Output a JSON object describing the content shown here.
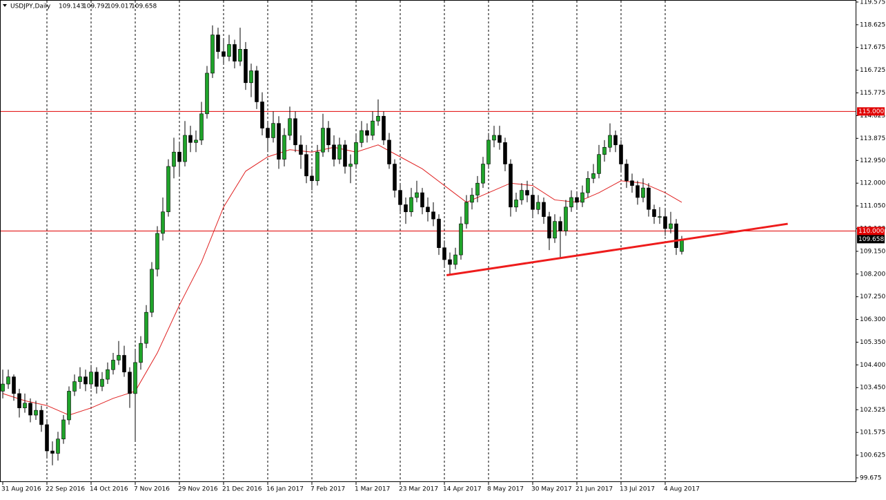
{
  "chart_data": {
    "type": "candlestick",
    "symbol": "USDJPY,Daily",
    "ohlc": [
      [
        103.3,
        104.2,
        103.0,
        103.6
      ],
      [
        103.6,
        104.2,
        103.4,
        103.9
      ],
      [
        103.9,
        104.0,
        102.9,
        103.2
      ],
      [
        103.2,
        103.4,
        102.2,
        102.6
      ],
      [
        102.6,
        103.2,
        102.4,
        102.8
      ],
      [
        102.8,
        103.0,
        102.0,
        102.3
      ],
      [
        102.3,
        102.9,
        102.1,
        102.5
      ],
      [
        102.5,
        102.7,
        101.6,
        101.9
      ],
      [
        101.9,
        102.1,
        100.5,
        100.8
      ],
      [
        100.8,
        101.2,
        100.2,
        100.7
      ],
      [
        100.7,
        101.6,
        100.4,
        101.3
      ],
      [
        101.3,
        102.3,
        101.1,
        102.1
      ],
      [
        102.1,
        103.5,
        101.9,
        103.3
      ],
      [
        103.3,
        104.0,
        103.1,
        103.7
      ],
      [
        103.7,
        104.3,
        103.4,
        103.9
      ],
      [
        103.9,
        104.2,
        103.3,
        103.6
      ],
      [
        103.6,
        104.4,
        103.4,
        104.1
      ],
      [
        104.1,
        104.3,
        103.2,
        103.5
      ],
      [
        103.5,
        104.1,
        103.3,
        103.8
      ],
      [
        103.8,
        104.5,
        103.6,
        104.2
      ],
      [
        104.2,
        104.9,
        104.0,
        104.6
      ],
      [
        104.6,
        105.4,
        104.4,
        104.8
      ],
      [
        104.8,
        105.2,
        103.9,
        104.1
      ],
      [
        104.1,
        104.3,
        102.6,
        103.2
      ],
      [
        103.2,
        105.0,
        101.2,
        104.5
      ],
      [
        104.5,
        105.6,
        104.2,
        105.3
      ],
      [
        105.3,
        106.9,
        105.1,
        106.6
      ],
      [
        106.6,
        108.7,
        106.4,
        108.4
      ],
      [
        108.4,
        110.2,
        108.1,
        109.9
      ],
      [
        109.9,
        111.4,
        109.6,
        110.8
      ],
      [
        110.8,
        113.0,
        110.6,
        112.7
      ],
      [
        112.7,
        113.9,
        112.2,
        113.3
      ],
      [
        113.3,
        113.7,
        112.3,
        112.9
      ],
      [
        112.9,
        114.6,
        112.7,
        114.0
      ],
      [
        114.0,
        114.4,
        113.3,
        113.7
      ],
      [
        113.7,
        114.2,
        113.3,
        113.8
      ],
      [
        113.8,
        115.4,
        113.6,
        114.9
      ],
      [
        114.9,
        116.9,
        114.7,
        116.6
      ],
      [
        116.6,
        118.6,
        116.4,
        118.2
      ],
      [
        118.2,
        118.5,
        117.2,
        117.5
      ],
      [
        117.5,
        118.0,
        117.0,
        117.3
      ],
      [
        117.3,
        118.2,
        117.1,
        117.8
      ],
      [
        117.8,
        118.0,
        116.8,
        117.1
      ],
      [
        117.1,
        118.5,
        116.9,
        117.6
      ],
      [
        117.6,
        117.9,
        115.9,
        116.2
      ],
      [
        116.2,
        117.0,
        115.6,
        116.7
      ],
      [
        116.7,
        116.9,
        115.1,
        115.4
      ],
      [
        115.4,
        115.8,
        114.0,
        114.3
      ],
      [
        114.3,
        114.6,
        113.3,
        113.9
      ],
      [
        113.9,
        115.0,
        113.7,
        114.5
      ],
      [
        114.5,
        114.8,
        112.6,
        113.0
      ],
      [
        113.0,
        114.3,
        112.7,
        114.0
      ],
      [
        114.0,
        115.2,
        113.8,
        114.7
      ],
      [
        114.7,
        115.0,
        113.3,
        113.6
      ],
      [
        113.6,
        114.0,
        112.6,
        113.2
      ],
      [
        113.2,
        113.6,
        112.0,
        112.3
      ],
      [
        112.3,
        112.6,
        111.7,
        112.1
      ],
      [
        112.1,
        113.6,
        111.9,
        113.3
      ],
      [
        113.3,
        114.9,
        113.1,
        114.3
      ],
      [
        114.3,
        114.6,
        113.3,
        113.6
      ],
      [
        113.6,
        114.0,
        112.7,
        113.0
      ],
      [
        113.0,
        113.9,
        112.8,
        113.6
      ],
      [
        113.6,
        113.8,
        112.4,
        112.7
      ],
      [
        112.7,
        113.2,
        112.0,
        112.8
      ],
      [
        112.8,
        114.0,
        112.6,
        113.7
      ],
      [
        113.7,
        114.6,
        113.5,
        114.2
      ],
      [
        114.2,
        114.5,
        113.7,
        114.0
      ],
      [
        114.0,
        115.0,
        113.8,
        114.6
      ],
      [
        114.6,
        115.5,
        114.4,
        114.8
      ],
      [
        114.8,
        115.0,
        113.6,
        113.8
      ],
      [
        113.8,
        114.1,
        112.6,
        112.8
      ],
      [
        112.8,
        113.0,
        111.4,
        111.7
      ],
      [
        111.7,
        112.0,
        110.8,
        111.1
      ],
      [
        111.1,
        111.4,
        110.3,
        110.8
      ],
      [
        110.8,
        111.8,
        110.6,
        111.4
      ],
      [
        111.4,
        112.1,
        111.2,
        111.6
      ],
      [
        111.6,
        111.8,
        110.7,
        111.0
      ],
      [
        111.0,
        111.4,
        110.4,
        110.8
      ],
      [
        110.8,
        111.2,
        110.2,
        110.5
      ],
      [
        110.5,
        110.7,
        109.0,
        109.3
      ],
      [
        109.3,
        109.6,
        108.5,
        108.8
      ],
      [
        108.8,
        109.1,
        108.2,
        108.6
      ],
      [
        108.6,
        109.3,
        108.4,
        109.0
      ],
      [
        109.0,
        110.6,
        108.8,
        110.3
      ],
      [
        110.3,
        111.5,
        110.1,
        111.2
      ],
      [
        111.2,
        111.8,
        110.9,
        111.5
      ],
      [
        111.5,
        112.3,
        111.2,
        112.0
      ],
      [
        112.0,
        113.1,
        111.8,
        112.8
      ],
      [
        112.8,
        114.1,
        112.6,
        113.8
      ],
      [
        113.8,
        114.4,
        113.5,
        114.0
      ],
      [
        114.0,
        114.4,
        113.4,
        113.7
      ],
      [
        113.7,
        113.9,
        112.5,
        112.8
      ],
      [
        112.8,
        113.0,
        110.6,
        111.0
      ],
      [
        111.0,
        111.6,
        110.8,
        111.3
      ],
      [
        111.3,
        112.0,
        111.1,
        111.7
      ],
      [
        111.7,
        112.1,
        111.2,
        111.5
      ],
      [
        111.5,
        111.8,
        110.6,
        110.9
      ],
      [
        110.9,
        111.5,
        110.7,
        111.2
      ],
      [
        111.2,
        111.4,
        110.3,
        110.6
      ],
      [
        110.6,
        110.8,
        109.2,
        109.7
      ],
      [
        109.7,
        110.7,
        109.5,
        110.4
      ],
      [
        110.4,
        110.6,
        108.9,
        110.0
      ],
      [
        110.0,
        111.3,
        109.8,
        111.0
      ],
      [
        111.0,
        111.7,
        110.8,
        111.4
      ],
      [
        111.4,
        111.6,
        110.9,
        111.2
      ],
      [
        111.2,
        111.9,
        111.0,
        111.6
      ],
      [
        111.6,
        112.5,
        111.4,
        112.2
      ],
      [
        112.2,
        112.8,
        112.0,
        112.4
      ],
      [
        112.4,
        113.6,
        112.2,
        113.2
      ],
      [
        113.2,
        113.8,
        112.9,
        113.5
      ],
      [
        113.5,
        114.5,
        113.3,
        114.0
      ],
      [
        114.0,
        114.2,
        113.3,
        113.6
      ],
      [
        113.6,
        113.8,
        112.5,
        112.8
      ],
      [
        112.8,
        113.0,
        111.8,
        112.1
      ],
      [
        112.1,
        112.4,
        111.6,
        111.9
      ],
      [
        111.9,
        112.1,
        111.1,
        111.4
      ],
      [
        111.4,
        112.2,
        111.2,
        111.8
      ],
      [
        111.8,
        112.0,
        110.6,
        110.9
      ],
      [
        110.9,
        111.1,
        110.3,
        110.6
      ],
      [
        110.6,
        111.0,
        110.3,
        110.6
      ],
      [
        110.6,
        110.9,
        109.8,
        110.1
      ],
      [
        110.1,
        110.8,
        109.9,
        110.3
      ],
      [
        110.3,
        110.5,
        109.0,
        109.3
      ],
      [
        109.143,
        109.792,
        109.017,
        109.658
      ]
    ],
    "categories": [
      "31 Aug 2016",
      null,
      null,
      null,
      null,
      null,
      null,
      null,
      "22 Sep 2016",
      null,
      null,
      null,
      null,
      null,
      null,
      null,
      "14 Oct 2016",
      null,
      null,
      null,
      null,
      null,
      null,
      null,
      "7 Nov 2016",
      null,
      null,
      null,
      null,
      null,
      null,
      null,
      "29 Nov 2016",
      null,
      null,
      null,
      null,
      null,
      null,
      null,
      "21 Dec 2016",
      null,
      null,
      null,
      null,
      null,
      null,
      null,
      "16 Jan 2017",
      null,
      null,
      null,
      null,
      null,
      null,
      null,
      "7 Feb 2017",
      null,
      null,
      null,
      null,
      null,
      null,
      null,
      "1 Mar 2017",
      null,
      null,
      null,
      null,
      null,
      null,
      null,
      "23 Mar 2017",
      null,
      null,
      null,
      null,
      null,
      null,
      null,
      "14 Apr 2017",
      null,
      null,
      null,
      null,
      null,
      null,
      null,
      "8 May 2017",
      null,
      null,
      null,
      null,
      null,
      null,
      null,
      "30 May 2017",
      null,
      null,
      null,
      null,
      null,
      null,
      null,
      "21 Jun 2017",
      null,
      null,
      null,
      null,
      null,
      null,
      null,
      "13 Jul 2017",
      null,
      null,
      null,
      null,
      null,
      null,
      null,
      "4 Aug 2017",
      null,
      null,
      null
    ],
    "bull_color": "#1fa32a",
    "bear_color": "#000000",
    "moving_average": {
      "color": "#e02020",
      "x": [
        0,
        4,
        8,
        12,
        16,
        20,
        24,
        28,
        32,
        36,
        40,
        44,
        48,
        52,
        56,
        60,
        64,
        68,
        72,
        76,
        80,
        84,
        88,
        92,
        96,
        100,
        104,
        108,
        112,
        116,
        120,
        123
      ],
      "values": [
        103.2,
        102.9,
        102.7,
        102.3,
        102.6,
        103.0,
        103.3,
        104.9,
        106.9,
        108.7,
        111.0,
        112.5,
        113.1,
        113.4,
        113.3,
        113.5,
        113.3,
        113.6,
        113.1,
        112.6,
        111.9,
        111.2,
        111.6,
        112.0,
        111.9,
        111.3,
        111.2,
        111.6,
        112.1,
        112.0,
        111.6,
        111.2
      ]
    },
    "trend_line": {
      "color": "#ee1c1c",
      "x": [
        80.4,
        142.2
      ],
      "values": [
        108.15,
        110.3
      ]
    },
    "levels": [
      {
        "value": 115.0,
        "label": "115.000"
      },
      {
        "value": 110.0,
        "label": "110.000"
      }
    ],
    "level_color": "#e00000",
    "ylim": [
      99.5,
      119.66
    ],
    "yticks": [
      {
        "value": 119.575,
        "label": "119.575"
      },
      {
        "value": 118.625,
        "label": "118.625"
      },
      {
        "value": 117.675,
        "label": "117.675"
      },
      {
        "value": 116.725,
        "label": "116.725"
      },
      {
        "value": 115.775,
        "label": "115.775"
      },
      {
        "value": 114.825,
        "label": "114.825"
      },
      {
        "value": 113.875,
        "label": "113.875"
      },
      {
        "value": 112.95,
        "label": "112.950"
      },
      {
        "value": 112.0,
        "label": "112.000"
      },
      {
        "value": 111.05,
        "label": "111.050"
      },
      {
        "value": 110.1,
        "label": "110.100"
      },
      {
        "value": 109.15,
        "label": "109.150"
      },
      {
        "value": 108.2,
        "label": "108.200"
      },
      {
        "value": 107.25,
        "label": "107.250"
      },
      {
        "value": 106.3,
        "label": "106.300"
      },
      {
        "value": 105.35,
        "label": "105.350"
      },
      {
        "value": 104.4,
        "label": "104.400"
      },
      {
        "value": 103.45,
        "label": "103.450"
      },
      {
        "value": 102.525,
        "label": "102.525"
      },
      {
        "value": 101.575,
        "label": "101.575"
      },
      {
        "value": 100.625,
        "label": "100.625"
      },
      {
        "value": 99.675,
        "label": "99.675"
      }
    ]
  }
}
